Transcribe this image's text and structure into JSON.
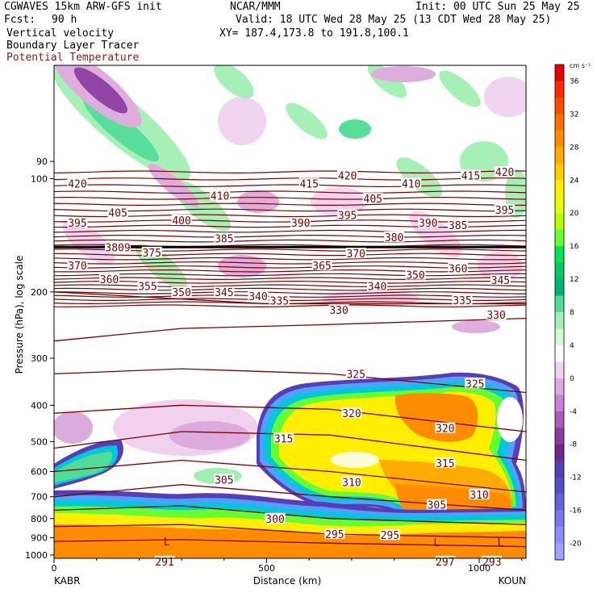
{
  "header": {
    "line1_left": "CGWAVES 15km ARW-GFS init",
    "line1_mid": "NCAR/MMM",
    "line1_right": "Init: 00 UTC Sun 25 May 25",
    "fcst_label": "Fcst:",
    "fcst_value": "90 h",
    "valid": "Valid: 18 UTC Wed 28 May 25 (13 CDT Wed 28 May 25)",
    "xy": "XY= 187.4,173.8 to 191.8,100.1",
    "field1": "Vertical velocity",
    "field2": "Boundary Layer Tracer",
    "field3": "Potential Temperature"
  },
  "colors": {
    "theta_line": "#7a0000",
    "field3_text": "#8b1a1a"
  },
  "chart_data": {
    "type": "heatmap",
    "xlabel": "Distance (km)",
    "ylabel": "Pressure (hPa), log scale",
    "x_ticks": [
      "0",
      "500",
      "1000"
    ],
    "x_range": [
      0,
      1110
    ],
    "y_range": [
      1020,
      50
    ],
    "y_scale": "log",
    "y_ticks": [
      "90",
      "100",
      "200",
      "300",
      "400",
      "500",
      "600",
      "700",
      "800",
      "900",
      "1000"
    ],
    "left_station": "KABR",
    "right_station": "KOUN",
    "colorbar": {
      "unit": "cm s⁻¹",
      "labels": [
        "36",
        "32",
        "28",
        "24",
        "20",
        "16",
        "12",
        "8",
        "4",
        "0",
        "-4",
        "-8",
        "-12",
        "-16",
        "-20"
      ],
      "colors": [
        "#e60000",
        "#ff2800",
        "#ff4b00",
        "#ff6e00",
        "#ff8c00",
        "#ffaa00",
        "#ffcc00",
        "#ffee00",
        "#e6ff00",
        "#b4ff00",
        "#64ff32",
        "#00e650",
        "#00c864",
        "#00b478",
        "#50dc96",
        "#a0f0b4",
        "#d2fad2",
        "#ffffff",
        "#f0d2f0",
        "#dcaadc",
        "#c882d2",
        "#aa5ab4",
        "#8c3ca0",
        "#6e288c",
        "#5a3cb4",
        "#5050c8",
        "#6464dc",
        "#7878f0",
        "#8c8cff",
        "#a0a0ff"
      ]
    },
    "theta_labels": [
      {
        "text": "420",
        "x": 55,
        "p": 103
      },
      {
        "text": "415",
        "x": 600,
        "p": 103
      },
      {
        "text": "420",
        "x": 690,
        "p": 98
      },
      {
        "text": "410",
        "x": 840,
        "p": 103
      },
      {
        "text": "415",
        "x": 980,
        "p": 98
      },
      {
        "text": "420",
        "x": 1060,
        "p": 96
      },
      {
        "text": "410",
        "x": 390,
        "p": 111
      },
      {
        "text": "405",
        "x": 750,
        "p": 113
      },
      {
        "text": "395",
        "x": 55,
        "p": 131
      },
      {
        "text": "405",
        "x": 150,
        "p": 123
      },
      {
        "text": "400",
        "x": 300,
        "p": 129
      },
      {
        "text": "390",
        "x": 580,
        "p": 131
      },
      {
        "text": "395",
        "x": 690,
        "p": 125
      },
      {
        "text": "390",
        "x": 880,
        "p": 131
      },
      {
        "text": "385",
        "x": 950,
        "p": 133
      },
      {
        "text": "395",
        "x": 1060,
        "p": 121
      },
      {
        "text": "385",
        "x": 400,
        "p": 144
      },
      {
        "text": "380",
        "x": 800,
        "p": 143
      },
      {
        "text": "3809",
        "x": 150,
        "p": 152
      },
      {
        "text": "375",
        "x": 230,
        "p": 157
      },
      {
        "text": "370",
        "x": 55,
        "p": 170
      },
      {
        "text": "365",
        "x": 630,
        "p": 170
      },
      {
        "text": "370",
        "x": 710,
        "p": 158
      },
      {
        "text": "360",
        "x": 130,
        "p": 185
      },
      {
        "text": "355",
        "x": 220,
        "p": 193
      },
      {
        "text": "350",
        "x": 300,
        "p": 200
      },
      {
        "text": "345",
        "x": 400,
        "p": 200
      },
      {
        "text": "340",
        "x": 480,
        "p": 205
      },
      {
        "text": "335",
        "x": 530,
        "p": 211
      },
      {
        "text": "360",
        "x": 950,
        "p": 173
      },
      {
        "text": "350",
        "x": 850,
        "p": 180
      },
      {
        "text": "340",
        "x": 760,
        "p": 193
      },
      {
        "text": "345",
        "x": 1050,
        "p": 186
      },
      {
        "text": "335",
        "x": 960,
        "p": 210
      },
      {
        "text": "330",
        "x": 670,
        "p": 223
      },
      {
        "text": "330",
        "x": 1040,
        "p": 230
      },
      {
        "text": "325",
        "x": 710,
        "p": 330
      },
      {
        "text": "325",
        "x": 990,
        "p": 350
      },
      {
        "text": "320",
        "x": 700,
        "p": 420
      },
      {
        "text": "320",
        "x": 920,
        "p": 460
      },
      {
        "text": "315",
        "x": 540,
        "p": 490
      },
      {
        "text": "315",
        "x": 920,
        "p": 570
      },
      {
        "text": "310",
        "x": 700,
        "p": 640
      },
      {
        "text": "310",
        "x": 1000,
        "p": 690
      },
      {
        "text": "305",
        "x": 400,
        "p": 630
      },
      {
        "text": "305",
        "x": 900,
        "p": 735
      },
      {
        "text": "300",
        "x": 520,
        "p": 800
      },
      {
        "text": "295",
        "x": 660,
        "p": 880
      },
      {
        "text": "295",
        "x": 790,
        "p": 885
      },
      {
        "text": "291",
        "x": 260,
        "p": 1040
      },
      {
        "text": "297",
        "x": 920,
        "p": 1040
      },
      {
        "text": "293",
        "x": 1030,
        "p": 1040
      }
    ],
    "low_markers": [
      {
        "text": "L",
        "x": 265,
        "p": 920
      },
      {
        "text": "L",
        "x": 900,
        "p": 925
      },
      {
        "text": "L",
        "x": 1050,
        "p": 925
      }
    ]
  }
}
